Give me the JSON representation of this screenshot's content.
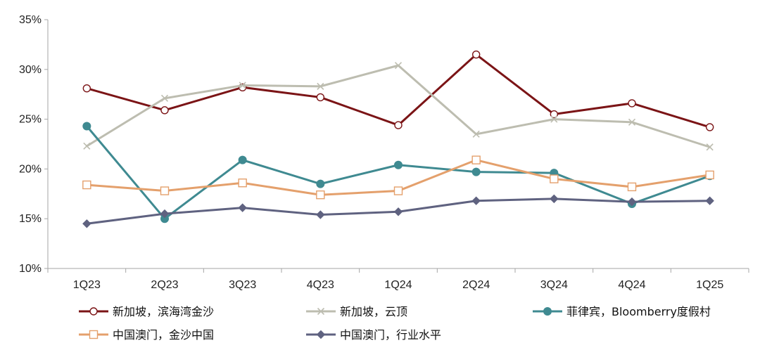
{
  "chart_data": {
    "type": "line",
    "title": "",
    "xlabel": "",
    "ylabel": "",
    "categories": [
      "1Q23",
      "2Q23",
      "3Q23",
      "4Q23",
      "1Q24",
      "2Q24",
      "3Q24",
      "4Q24",
      "1Q25"
    ],
    "ylim": [
      10,
      35
    ],
    "yticks": [
      "10%",
      "15%",
      "20%",
      "25%",
      "30%",
      "35%"
    ],
    "grid": false,
    "legend_position": "bottom",
    "series": [
      {
        "name": "新加坡，滨海湾金沙",
        "values": [
          28.1,
          25.9,
          28.2,
          27.2,
          24.4,
          31.5,
          25.5,
          26.6,
          24.2
        ],
        "color": "#7b1416",
        "marker": "circle-open"
      },
      {
        "name": "新加坡，云顶",
        "values": [
          22.3,
          27.1,
          28.4,
          28.3,
          30.4,
          23.5,
          25.0,
          24.7,
          22.2
        ],
        "color": "#bdbdb0",
        "marker": "x"
      },
      {
        "name": "菲律宾，Bloomberry度假村",
        "values": [
          24.3,
          15.0,
          20.9,
          18.5,
          20.4,
          19.7,
          19.6,
          16.5,
          19.3
        ],
        "color": "#3f8a91",
        "marker": "circle-filled"
      },
      {
        "name": "中国澳门，金沙中国",
        "values": [
          18.4,
          17.8,
          18.6,
          17.4,
          17.8,
          20.9,
          19.0,
          18.2,
          19.4
        ],
        "color": "#e4a06c",
        "marker": "square-open"
      },
      {
        "name": "中国澳门，行业水平",
        "values": [
          14.5,
          15.5,
          16.1,
          15.4,
          15.7,
          16.8,
          17.0,
          16.7,
          16.8
        ],
        "color": "#5f6280",
        "marker": "diamond"
      }
    ]
  }
}
